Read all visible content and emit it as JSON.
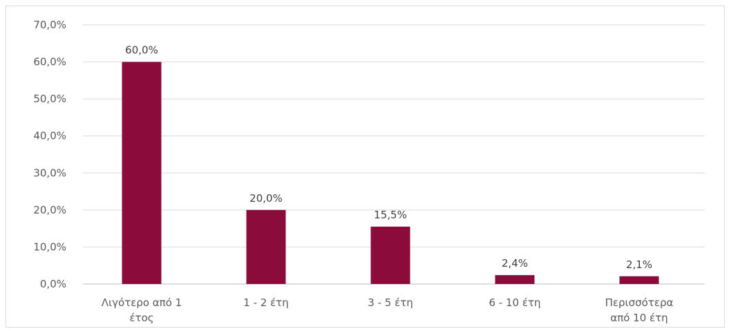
{
  "chart_data": {
    "type": "bar",
    "categories": [
      [
        "Λιγότερο από 1",
        "έτος"
      ],
      [
        "1 - 2 έτη"
      ],
      [
        "3 - 5 έτη"
      ],
      [
        "6 - 10 έτη"
      ],
      [
        "Περισσότερα",
        "από 10 έτη"
      ]
    ],
    "values": [
      60.0,
      20.0,
      15.5,
      2.4,
      2.1
    ],
    "data_labels": [
      "60,0%",
      "20,0%",
      "15,5%",
      "2,4%",
      "2,1%"
    ],
    "y_ticks": [
      "0,0%",
      "10,0%",
      "20,0%",
      "30,0%",
      "40,0%",
      "50,0%",
      "60,0%",
      "70,0%"
    ],
    "ylim": [
      0,
      70
    ],
    "grid": true,
    "legend": "none",
    "bar_color": "#8b0c3b",
    "grid_color": "#d9d9d9"
  }
}
